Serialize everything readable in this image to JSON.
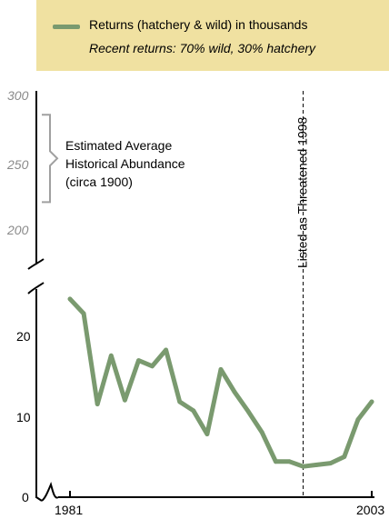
{
  "legend": {
    "series_label": "Returns (hatchery & wild) in thousands",
    "note": "Recent returns:  70% wild, 30% hatchery",
    "swatch_color": "#7a9a6f"
  },
  "annotations": {
    "historical_line1": "Estimated Average",
    "historical_line2": "Historical Abundance",
    "historical_line3": "(circa 1900)",
    "threatened_label": "Listed as Threatened 1998"
  },
  "chart_data": {
    "type": "line",
    "x_start_label": "1981",
    "x_end_label": "2003",
    "xlim": [
      1981,
      2003
    ],
    "upper_axis": {
      "ylim": [
        200,
        300
      ],
      "ticks": [
        "300",
        "250",
        "200"
      ],
      "historical_range": [
        220,
        285
      ]
    },
    "lower_axis": {
      "ylim": [
        0,
        28
      ],
      "ticks": [
        "20",
        "10",
        "0"
      ]
    },
    "threatened_year": 1998,
    "series": [
      {
        "color": "#7a9a6f",
        "x": [
          1981,
          1982,
          1983,
          1984,
          1985,
          1986,
          1987,
          1988,
          1989,
          1990,
          1991,
          1992,
          1993,
          1994,
          1995,
          1996,
          1997,
          1998,
          1999,
          2000,
          2001,
          2002,
          2003
        ],
        "values": [
          24.5,
          22.7,
          11.5,
          17.5,
          12.0,
          16.9,
          16.2,
          18.2,
          11.8,
          10.7,
          7.8,
          15.8,
          13.0,
          10.6,
          8.0,
          4.4,
          4.4,
          3.8,
          4.0,
          4.2,
          5.0,
          9.6,
          11.8
        ]
      }
    ]
  }
}
